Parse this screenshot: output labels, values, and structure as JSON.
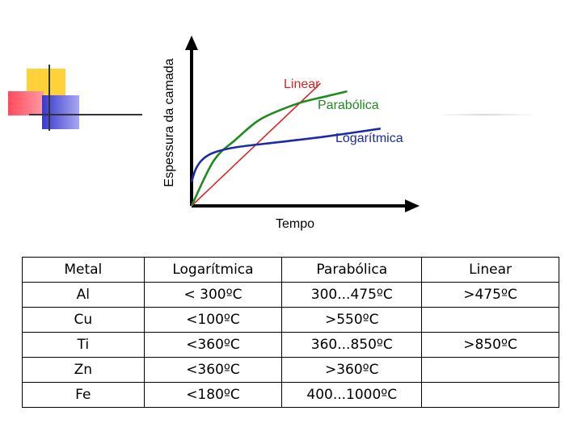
{
  "chart_data": {
    "type": "line",
    "title": "",
    "xlabel": "Tempo",
    "ylabel": "Espessura da camada",
    "xlim": [
      0,
      10
    ],
    "ylim": [
      0,
      10
    ],
    "grid": false,
    "series": [
      {
        "name": "Linear",
        "color": "#dd2222",
        "x": [
          0,
          5.8
        ],
        "y": [
          0,
          9.2
        ]
      },
      {
        "name": "Parabólica",
        "color": "#1f8a1f",
        "x": [
          0,
          1,
          2,
          3,
          4,
          5,
          6,
          7
        ],
        "y": [
          0,
          3.4,
          5.0,
          6.4,
          7.2,
          7.8,
          8.2,
          8.6
        ]
      },
      {
        "name": "Logarítmica",
        "color": "#1a2aa8",
        "x": [
          0,
          0.2,
          0.5,
          1,
          2,
          4,
          6,
          8.5
        ],
        "y": [
          1.8,
          2.8,
          3.5,
          4.0,
          4.4,
          4.8,
          5.2,
          5.8
        ]
      }
    ]
  },
  "table": {
    "headers": [
      "Metal",
      "Logarítmica",
      "Parabólica",
      "Linear"
    ],
    "rows": [
      [
        "Al",
        "< 300ºC",
        "300...475ºC",
        ">475ºC"
      ],
      [
        "Cu",
        "<100ºC",
        ">550ºC",
        ""
      ],
      [
        "Ti",
        "<360ºC",
        "360...850ºC",
        ">850ºC"
      ],
      [
        "Zn",
        "<360ºC",
        ">360ºC",
        ""
      ],
      [
        "Fe",
        "<180ºC",
        "400...1000ºC",
        ""
      ]
    ]
  },
  "colors": {
    "deco_yellow": "#ffd23a",
    "deco_red": "#ff4a5a",
    "deco_blue": "#4a4ad8",
    "axis": "#000000"
  }
}
